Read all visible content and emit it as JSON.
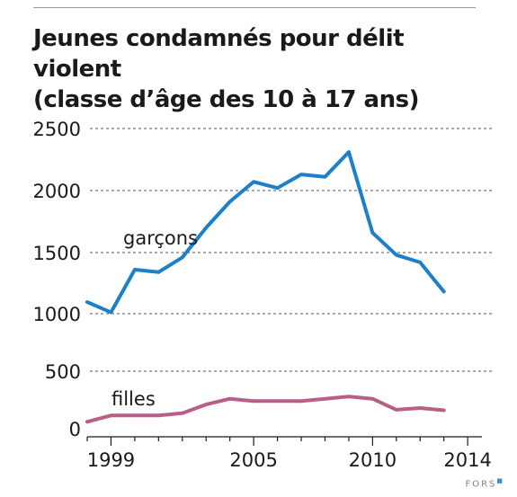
{
  "title": {
    "line1": "Jeunes condamnés pour délit violent",
    "line2": "(classe d’âge des 10 à 17 ans)"
  },
  "source": "FORS",
  "chart_data": {
    "type": "line",
    "x": [
      1998,
      1999,
      2000,
      2001,
      2002,
      2003,
      2004,
      2005,
      2006,
      2007,
      2008,
      2009,
      2010,
      2011,
      2012,
      2013,
      2014
    ],
    "xticks": [
      1999,
      2005,
      2010,
      2014
    ],
    "yticks": [
      0,
      500,
      1000,
      1500,
      2000,
      2500
    ],
    "xlim": [
      1998,
      2014.6
    ],
    "ylim": [
      0,
      2500
    ],
    "grid": "horizontal dashed",
    "series": [
      {
        "name": "garçons",
        "color": "#1b7fc9",
        "values": [
          1095,
          1010,
          1360,
          1340,
          1460,
          1700,
          1910,
          2070,
          2020,
          2130,
          2110,
          2310,
          1660,
          1480,
          1420,
          1180,
          null
        ]
      },
      {
        "name": "filles",
        "color": "#b85f85",
        "values": [
          60,
          115,
          115,
          115,
          135,
          210,
          260,
          240,
          240,
          240,
          260,
          280,
          260,
          165,
          180,
          160,
          null
        ]
      }
    ]
  }
}
